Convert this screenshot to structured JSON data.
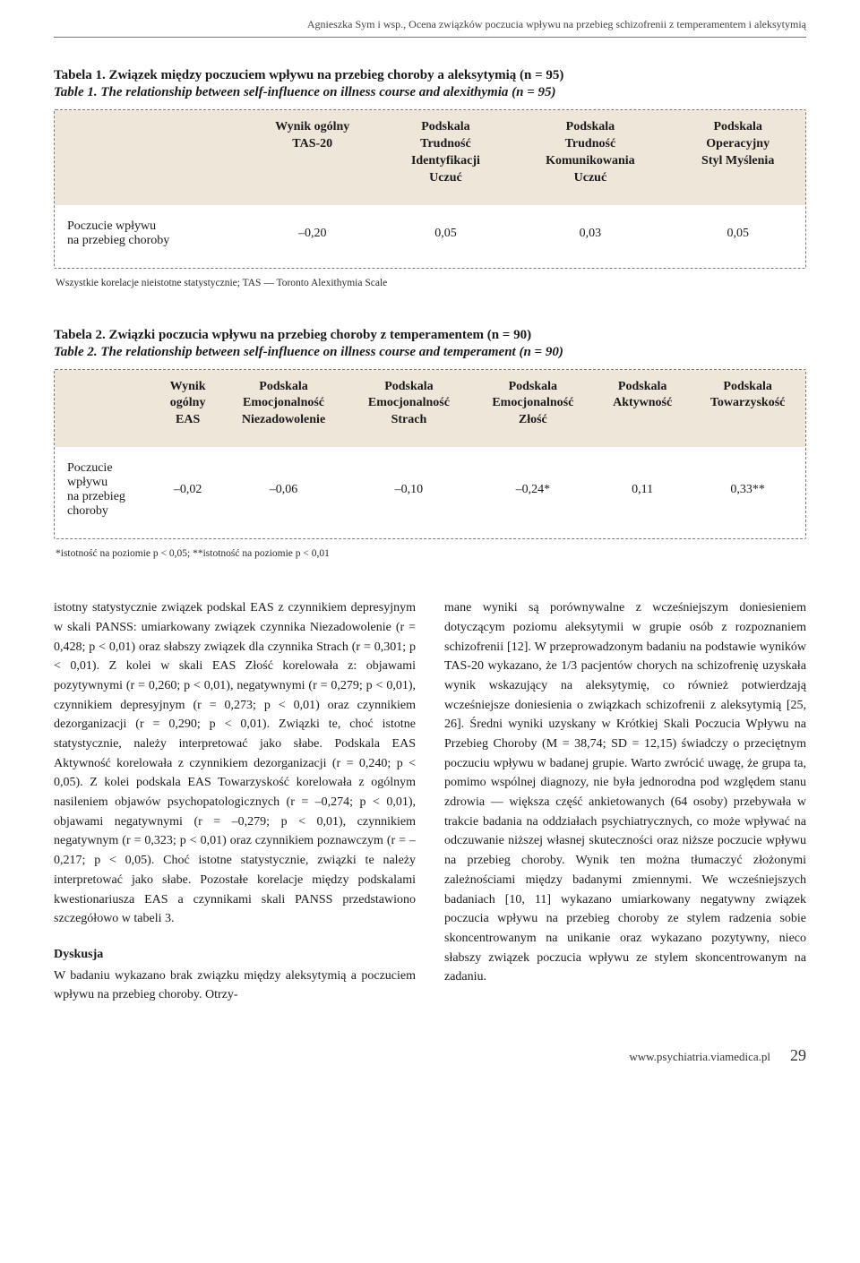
{
  "running_head": "Agnieszka Sym i wsp., Ocena związków poczucia wpływu na przebieg schizofrenii z temperamentem i aleksytymią",
  "table1": {
    "caption_pl": "Tabela 1. Związek między poczuciem wpływu na przebieg choroby a aleksytymią (n = 95)",
    "caption_en": "Table 1. The relationship between self-influence on illness course and alexithymia (n = 95)",
    "header_bg": "#efe6da",
    "columns": [
      "",
      "Wynik ogólny\nTAS-20",
      "Podskala\nTrudność\nIdentyfikacji\nUczuć",
      "Podskala\nTrudność\nKomunikowania\nUczuć",
      "Podskala\nOperacyjny\nStyl Myślenia"
    ],
    "row": {
      "label": "Poczucie wpływu\nna przebieg choroby",
      "values": [
        "–0,20",
        "0,05",
        "0,03",
        "0,05"
      ]
    },
    "footnote": "Wszystkie korelacje nieistotne statystycznie; TAS — Toronto Alexithymia Scale"
  },
  "table2": {
    "caption_pl": "Tabela 2. Związki poczucia wpływu na przebieg choroby z temperamentem (n = 90)",
    "caption_en": "Table 2. The relationship between self-influence on illness course and temperament (n = 90)",
    "header_bg": "#efe6da",
    "columns": [
      "",
      "Wynik\nogólny\nEAS",
      "Podskala\nEmocjonalność\nNiezadowolenie",
      "Podskala\nEmocjonalność\nStrach",
      "Podskala\nEmocjonalność\nZłość",
      "Podskala\nAktywność",
      "Podskala\nTowarzyskość"
    ],
    "row": {
      "label": "Poczucie\nwpływu\nna przebieg\nchoroby",
      "values": [
        "–0,02",
        "–0,06",
        "–0,10",
        "–0,24*",
        "0,11",
        "0,33**"
      ]
    },
    "footnote": "*istotność na poziomie p < 0,05; **istotność na poziomie p < 0,01"
  },
  "body": {
    "left": "istotny statystycznie związek podskal EAS z czynnikiem depresyjnym w skali PANSS: umiarkowany związek czynnika Niezadowolenie (r = 0,428; p < 0,01) oraz słabszy związek dla czynnika Strach (r = 0,301; p < 0,01). Z kolei w skali EAS Złość korelowała z: objawami pozytywnymi (r = 0,260; p < 0,01), negatywnymi (r = 0,279; p < 0,01), czynnikiem depresyjnym (r = 0,273; p < 0,01) oraz czynnikiem dezorganizacji (r = 0,290; p < 0,01). Związki te, choć istotne statystycznie, należy interpretować jako słabe. Podskala EAS Aktywność korelowała z czynnikiem dezorganizacji (r = 0,240; p < 0,05). Z kolei podskala EAS Towarzyskość korelowała z ogólnym nasileniem objawów psychopatologicznych (r = –0,274; p < 0,01), objawami negatywnymi (r = –0,279; p < 0,01), czynnikiem negatywnym (r = 0,323; p < 0,01) oraz czynnikiem poznawczym (r = –0,217; p < 0,05). Choć istotne statystycznie, związki te należy interpretować jako słabe. Pozostałe korelacje między podskalami kwestionariusza EAS a czynnikami skali PANSS przedstawiono szczegółowo w tabeli 3.",
    "left_subhead": "Dyskusja",
    "left2": "W badaniu wykazano brak związku między aleksytymią a poczuciem wpływu na przebieg choroby. Otrzy-",
    "right": "mane wyniki są porównywalne z wcześniejszym doniesieniem dotyczącym poziomu aleksytymii w grupie osób z rozpoznaniem schizofrenii [12]. W przeprowadzonym badaniu na podstawie wyników TAS-20 wykazano, że 1/3 pacjentów chorych na schizofrenię uzyskała wynik wskazujący na aleksytymię, co również potwierdzają wcześniejsze doniesienia o związkach schizofrenii z aleksytymią [25, 26]. Średni wyniki uzyskany w Krótkiej Skali Poczucia Wpływu na Przebieg Choroby (M = 38,74; SD = 12,15) świadczy o przeciętnym poczuciu wpływu w badanej grupie. Warto zwrócić uwagę, że grupa ta, pomimo wspólnej diagnozy, nie była jednorodna pod względem stanu zdrowia — większa część ankietowanych (64 osoby) przebywała w trakcie badania na oddziałach psychiatrycznych, co może wpływać na odczuwanie niższej własnej skuteczności oraz niższe poczucie wpływu na przebieg choroby. Wynik ten można tłumaczyć złożonymi zależnościami między badanymi zmiennymi. We wcześniejszych badaniach [10, 11] wykazano umiarkowany negatywny związek poczucia wpływu na przebieg choroby ze stylem radzenia sobie skoncentrowanym na unikanie oraz wykazano pozytywny, nieco słabszy związek poczucia wpływu ze stylem skoncentrowanym na zadaniu."
  },
  "footer": {
    "url": "www.psychiatria.viamedica.pl",
    "page": "29"
  }
}
